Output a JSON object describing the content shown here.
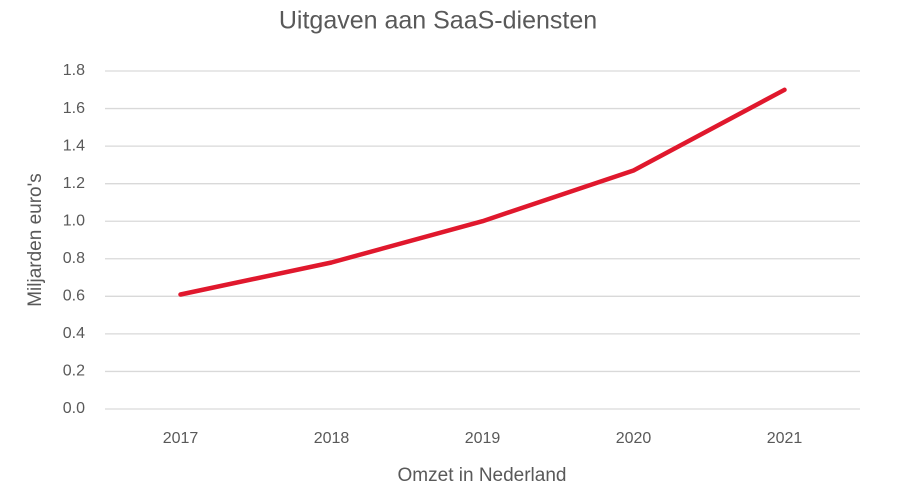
{
  "chart_data": {
    "type": "line",
    "title": "Uitgaven aan SaaS-diensten",
    "x_label": "Omzet in Nederland",
    "y_label": "Miljarden euro's",
    "categories": [
      "2017",
      "2018",
      "2019",
      "2020",
      "2021"
    ],
    "values": [
      0.61,
      0.78,
      1.0,
      1.27,
      1.7
    ],
    "color": "#e0182d",
    "ylim": [
      0,
      1.8
    ],
    "yticks": [
      {
        "value": 0,
        "label": "0.0"
      },
      0.2,
      0.4,
      0.6,
      0.8,
      {
        "value": 1,
        "label": "1.0"
      },
      1.2,
      1.4,
      1.6,
      1.8
    ],
    "grid": true
  }
}
